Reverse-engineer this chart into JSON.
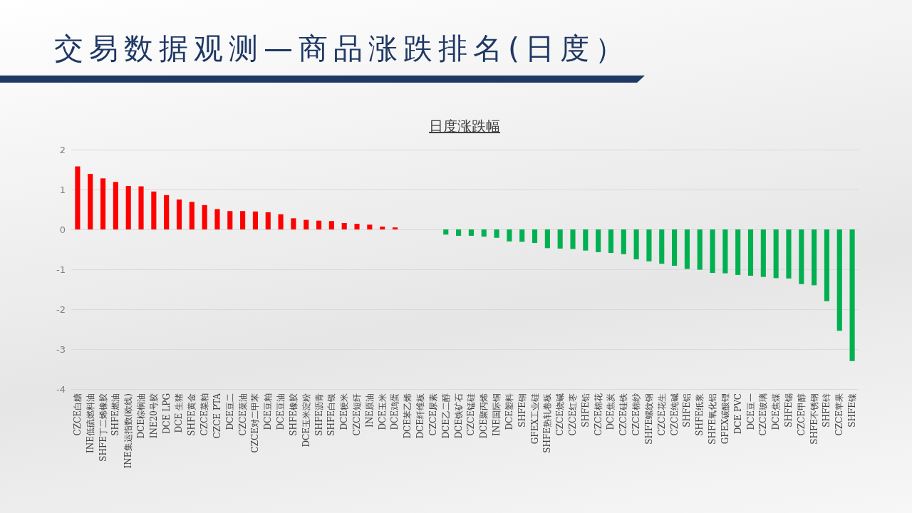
{
  "chart_data": {
    "type": "bar",
    "title": "交易数据观测—商品涨跌排名(日度）",
    "subtitle": "日度涨跌幅",
    "categories": [
      "CZCE白糖",
      "INE低硫燃料油",
      "SHFE丁二烯橡胶",
      "SHFE燃油",
      "INE集运指数(欧线)",
      "DCE棕榈油",
      "INE20号胶",
      "DCE LPG",
      "DCE 生猪",
      "SHFE黄金",
      "CZCE菜粕",
      "CZCE PTA",
      "DCE豆二",
      "CZCE菜油",
      "CZCE对二甲苯",
      "DCE豆粕",
      "DCE豆油",
      "SHFE橡胶",
      "DCE玉米淀粉",
      "SHFE沥青",
      "SHFE白银",
      "DCE粳米",
      "CZCE短纤",
      "INE原油",
      "DCE玉米",
      "DCE鸡蛋",
      "DCE苯乙烯",
      "DCE纤维板",
      "CZCE尿素",
      "DCE乙二醇",
      "DCE铁矿石",
      "CZCE锰硅",
      "DCE聚丙烯",
      "INE国际铜",
      "DCE塑料",
      "SHFE铜",
      "GFEX工业硅",
      "SHFE热轧卷板",
      "CZCE烧碱",
      "CZCE红枣",
      "SHFE铅",
      "CZCE棉花",
      "DCE焦炭",
      "CZCE硅铁",
      "CZCE棉纱",
      "SHFE螺纹钢",
      "CZCE花生",
      "CZCE纯碱",
      "SHFE铝",
      "SHFE纸浆",
      "SHFE氧化铝",
      "GFEX碳酸锂",
      "DCE PVC",
      "DCE豆一",
      "CZCE玻璃",
      "DCE焦煤",
      "SHFE锡",
      "CZCE甲醇",
      "SHFE不锈钢",
      "SHFE锌",
      "CZCE苹果",
      "SHFE镍"
    ],
    "values": [
      1.58,
      1.39,
      1.28,
      1.19,
      1.09,
      1.08,
      0.95,
      0.86,
      0.75,
      0.69,
      0.61,
      0.51,
      0.46,
      0.46,
      0.45,
      0.43,
      0.38,
      0.28,
      0.24,
      0.22,
      0.21,
      0.16,
      0.14,
      0.12,
      0.07,
      0.05,
      0,
      0,
      0,
      -0.13,
      -0.16,
      -0.16,
      -0.18,
      -0.21,
      -0.3,
      -0.31,
      -0.34,
      -0.47,
      -0.48,
      -0.49,
      -0.53,
      -0.57,
      -0.59,
      -0.62,
      -0.75,
      -0.8,
      -0.86,
      -0.91,
      -0.99,
      -1.01,
      -1.09,
      -1.1,
      -1.14,
      -1.16,
      -1.19,
      -1.22,
      -1.23,
      -1.37,
      -1.4,
      -1.8,
      -2.54,
      -3.3
    ],
    "colors": [
      "#ff0000",
      "#ff0000",
      "#ff0000",
      "#ff0000",
      "#ff0000",
      "#ff0000",
      "#ff0000",
      "#ff0000",
      "#ff0000",
      "#ff0000",
      "#ff0000",
      "#ff0000",
      "#ff0000",
      "#ff0000",
      "#ff0000",
      "#ff0000",
      "#ff0000",
      "#ff0000",
      "#ff0000",
      "#ff0000",
      "#ff0000",
      "#ff0000",
      "#ff0000",
      "#ff0000",
      "#ff0000",
      "#ff0000",
      "#ff0000",
      "#ff0000",
      "#ff0000",
      "#00b050",
      "#00b050",
      "#00b050",
      "#00b050",
      "#00b050",
      "#00b050",
      "#00b050",
      "#00b050",
      "#00b050",
      "#00b050",
      "#00b050",
      "#00b050",
      "#00b050",
      "#00b050",
      "#00b050",
      "#00b050",
      "#00b050",
      "#00b050",
      "#00b050",
      "#00b050",
      "#00b050",
      "#00b050",
      "#00b050",
      "#00b050",
      "#00b050",
      "#00b050",
      "#00b050",
      "#00b050",
      "#00b050",
      "#00b050",
      "#00b050",
      "#00b050",
      "#00b050"
    ],
    "ylim": [
      -4,
      2
    ],
    "yticks": [
      -4,
      -3,
      -2,
      -1,
      0,
      1,
      2
    ],
    "grid": "y"
  }
}
